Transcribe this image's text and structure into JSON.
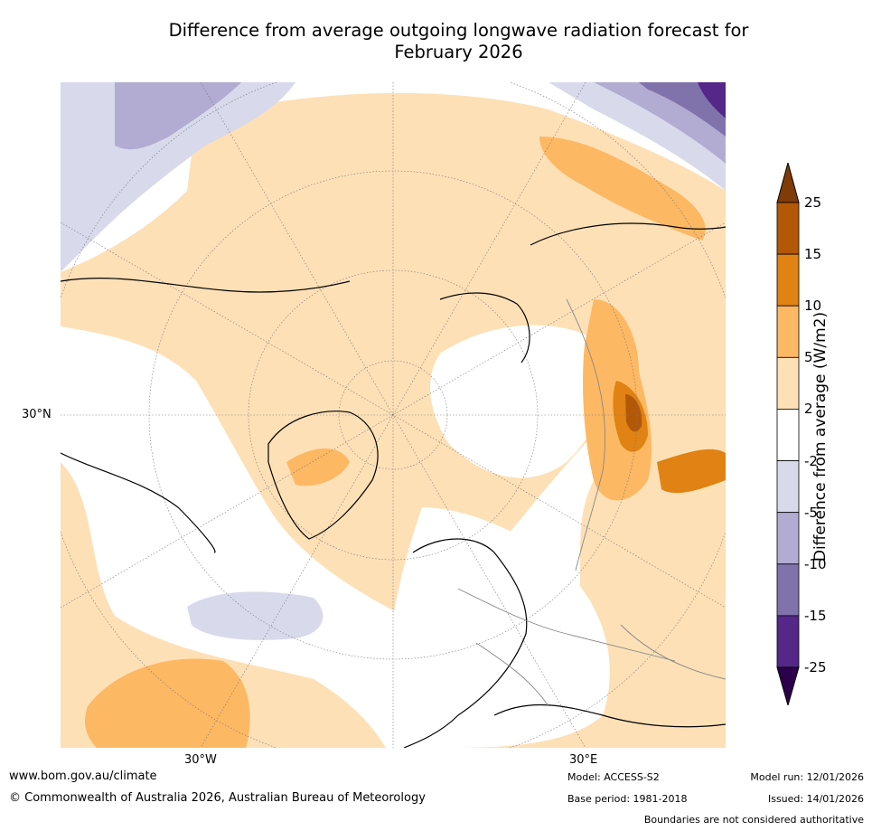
{
  "title": {
    "line1": "Difference from average outgoing longwave radiation forecast for",
    "line2": "February 2026"
  },
  "map": {
    "projection": "north-polar-stereographic",
    "graticule_labels": {
      "lat_30n": "30°N",
      "lon_30w": "30°W",
      "lon_30e": "30°E"
    },
    "colors": {
      "ocean_white": "#ffffff",
      "pos_2_5": "#fde0b6",
      "pos_5_10": "#fdb863",
      "pos_10_15": "#e08214",
      "pos_15_25": "#b35806",
      "neg_2_5": "#d8daeb",
      "neg_5_10": "#b2abd2",
      "neg_10_15": "#8073ac",
      "neg_15_25": "#542788"
    }
  },
  "colorbar": {
    "label": "Difference from average (W/m2)",
    "ticks": [
      "25",
      "15",
      "10",
      "5",
      "2",
      "-2",
      "-5",
      "-10",
      "-15",
      "-25"
    ],
    "colors": [
      "#7f3b08",
      "#b35806",
      "#e08214",
      "#fdb863",
      "#fde0b6",
      "#ffffff",
      "#d8daeb",
      "#b2abd2",
      "#8073ac",
      "#542788",
      "#2d004b"
    ]
  },
  "footer": {
    "website": "www.bom.gov.au/climate",
    "copyright": "© Commonwealth of Australia 2026, Australian Bureau of Meteorology",
    "model": "Model: ACCESS-S2",
    "base_period": "Base period: 1981-2018",
    "model_run": "Model run: 12/01/2026",
    "issued": "Issued: 14/01/2026",
    "disclaimer": "Boundaries are not considered authoritative"
  }
}
